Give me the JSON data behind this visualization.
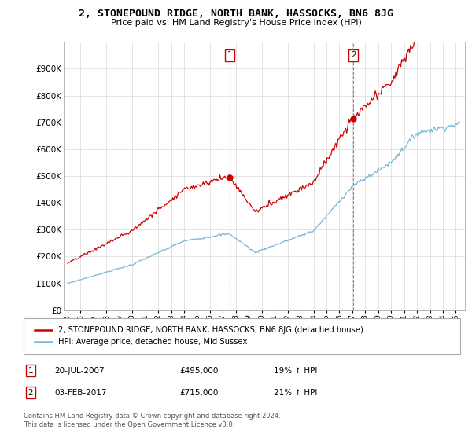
{
  "title": "2, STONEPOUND RIDGE, NORTH BANK, HASSOCKS, BN6 8JG",
  "subtitle": "Price paid vs. HM Land Registry's House Price Index (HPI)",
  "hpi_label": "HPI: Average price, detached house, Mid Sussex",
  "property_label": "2, STONEPOUND RIDGE, NORTH BANK, HASSOCKS, BN6 8JG (detached house)",
  "transaction1_label": "20-JUL-2007",
  "transaction1_price": "£495,000",
  "transaction1_hpi": "19% ↑ HPI",
  "transaction2_label": "03-FEB-2017",
  "transaction2_price": "£715,000",
  "transaction2_hpi": "21% ↑ HPI",
  "footer": "Contains HM Land Registry data © Crown copyright and database right 2024.\nThis data is licensed under the Open Government Licence v3.0.",
  "hpi_color": "#7ab8d9",
  "property_color": "#cc0000",
  "ylim_min": 0,
  "ylim_max": 1000000,
  "yticks": [
    0,
    100000,
    200000,
    300000,
    400000,
    500000,
    600000,
    700000,
    800000,
    900000
  ],
  "ytick_labels": [
    "£0",
    "£100K",
    "£200K",
    "£300K",
    "£400K",
    "£500K",
    "£600K",
    "£700K",
    "£800K",
    "£900K"
  ],
  "transaction1_year": 2007.55,
  "transaction1_value": 495000,
  "transaction2_year": 2017.08,
  "transaction2_value": 715000
}
